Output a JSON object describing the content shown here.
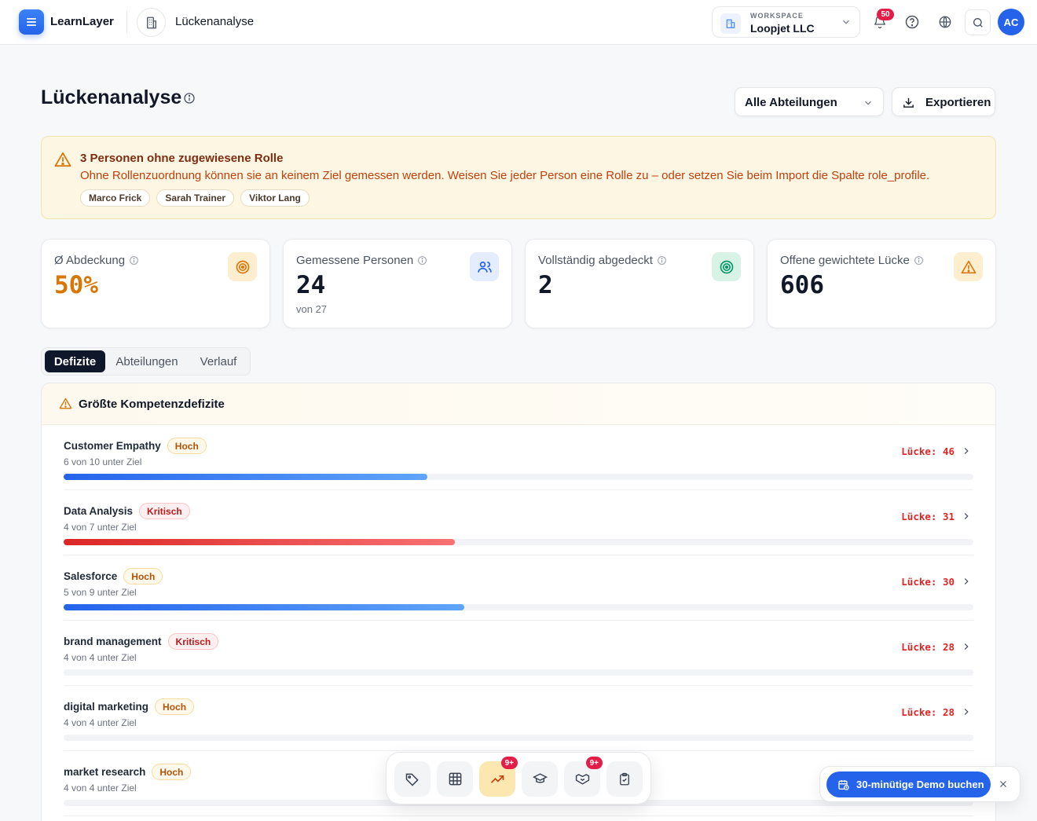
{
  "app": {
    "brand": "LearnLayer",
    "breadcrumb": "Lückenanalyse"
  },
  "workspace": {
    "label": "WORKSPACE",
    "name": "Loopjet LLC"
  },
  "notifications": {
    "count": "50"
  },
  "user": {
    "initials": "AC"
  },
  "page": {
    "title": "Lückenanalyse",
    "department_filter": "Alle Abteilungen",
    "export_label": "Exportieren"
  },
  "warning": {
    "title": "3 Personen ohne zugewiesene Rolle",
    "text": "Ohne Rollenzuordnung können sie an keinem Ziel gemessen werden. Weisen Sie jeder Person eine Rolle zu – oder setzen Sie beim Import die Spalte role_profile.",
    "people": [
      "Marco Frick",
      "Sarah Trainer",
      "Viktor Lang"
    ]
  },
  "stats": [
    {
      "label": "Ø Abdeckung",
      "value": "50%",
      "sub": "",
      "icon": "target-icon",
      "accent": "#d97706"
    },
    {
      "label": "Gemessene Personen",
      "value": "24",
      "sub": "von 27",
      "icon": "users-icon",
      "accent": "#2563eb"
    },
    {
      "label": "Vollständig abgedeckt",
      "value": "2",
      "sub": "",
      "icon": "target-check-icon",
      "accent": "#059669"
    },
    {
      "label": "Offene gewichtete Lücke",
      "value": "606",
      "sub": "",
      "icon": "warning-icon",
      "accent": "#d97706"
    }
  ],
  "tabs": [
    "Defizite",
    "Abteilungen",
    "Verlauf"
  ],
  "deficits": {
    "title": "Größte Kompetenzdefizite",
    "items": [
      {
        "name": "Customer Empathy",
        "severity": "Hoch",
        "sub": "6 von 10 unter Ziel",
        "gap": "Lücke: 46",
        "progress": 0.4,
        "tone": "blue"
      },
      {
        "name": "Data Analysis",
        "severity": "Kritisch",
        "sub": "4 von 7 unter Ziel",
        "gap": "Lücke: 31",
        "progress": 0.43,
        "tone": "red"
      },
      {
        "name": "Salesforce",
        "severity": "Hoch",
        "sub": "5 von 9 unter Ziel",
        "gap": "Lücke: 30",
        "progress": 0.44,
        "tone": "blue"
      },
      {
        "name": "brand management",
        "severity": "Kritisch",
        "sub": "4 von 4 unter Ziel",
        "gap": "Lücke: 28",
        "progress": 0,
        "tone": "red"
      },
      {
        "name": "digital marketing",
        "severity": "Hoch",
        "sub": "4 von 4 unter Ziel",
        "gap": "Lücke: 28",
        "progress": 0,
        "tone": "blue"
      },
      {
        "name": "market research",
        "severity": "Hoch",
        "sub": "4 von 4 unter Ziel",
        "gap": "",
        "progress": 0,
        "tone": "blue"
      }
    ]
  },
  "dock": {
    "items": [
      {
        "icon": "tag-icon",
        "badge": ""
      },
      {
        "icon": "grid-icon",
        "badge": ""
      },
      {
        "icon": "trending-up-icon",
        "badge": "9+",
        "active": true
      },
      {
        "icon": "graduation-cap-icon",
        "badge": ""
      },
      {
        "icon": "handshake-icon",
        "badge": "9+"
      },
      {
        "icon": "clipboard-check-icon",
        "badge": ""
      }
    ]
  },
  "demo": {
    "label": "30-minütige Demo buchen"
  }
}
